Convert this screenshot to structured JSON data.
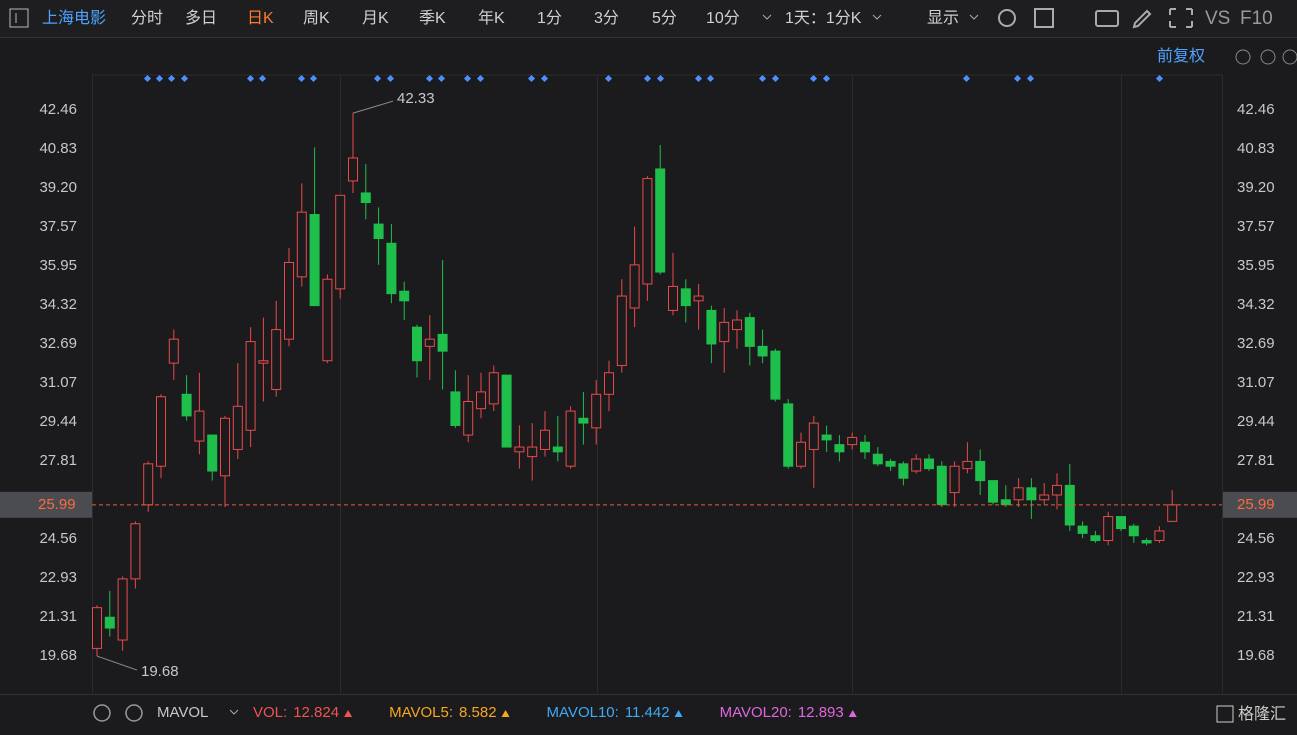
{
  "toolbar": {
    "stock": "上海电影",
    "tabs": [
      "分时",
      "多日",
      "日K",
      "周K",
      "月K",
      "季K",
      "年K",
      "1分",
      "3分",
      "5分",
      "10分"
    ],
    "period": "1天：1分K",
    "display": "显示",
    "vs": "VS",
    "f10": "F10"
  },
  "adjust": "前复权",
  "chart_data": {
    "type": "candlestick",
    "open": [
      20.0,
      21.3,
      20.35,
      22.9,
      25.99,
      27.6,
      31.9,
      30.6,
      28.65,
      28.9,
      27.2,
      28.3,
      29.1,
      31.9,
      30.8,
      32.9,
      35.5,
      38.1,
      32.0,
      35.0,
      39.5,
      39.0,
      37.7,
      36.9,
      34.9,
      33.4,
      32.6,
      33.1,
      30.7,
      28.9,
      30.0,
      30.2,
      31.4,
      28.2,
      28.0,
      28.3,
      28.4,
      27.6,
      29.6,
      29.2,
      30.6,
      31.8,
      34.2,
      35.2,
      40.0,
      34.1,
      35.0,
      34.5,
      34.1,
      32.8,
      33.3,
      33.8,
      32.6,
      32.4,
      30.2,
      27.6,
      28.3,
      28.9,
      28.5,
      28.5,
      28.6,
      28.1,
      27.8,
      27.7,
      27.4,
      27.9,
      27.6,
      26.5,
      27.5,
      27.8,
      27.0,
      26.2,
      26.2,
      26.7,
      26.2,
      26.4,
      26.8,
      25.1,
      24.7,
      24.5,
      25.5,
      25.1,
      24.5,
      24.5,
      25.3
    ],
    "high": [
      21.8,
      22.4,
      23.0,
      25.3,
      27.8,
      30.6,
      33.3,
      31.4,
      31.5,
      28.9,
      29.7,
      31.9,
      33.4,
      33.8,
      34.5,
      36.7,
      39.4,
      40.9,
      35.6,
      38.9,
      42.33,
      40.2,
      38.4,
      37.7,
      35.3,
      33.5,
      33.9,
      36.2,
      31.6,
      31.4,
      31.5,
      31.8,
      31.4,
      29.3,
      29.4,
      29.9,
      29.7,
      30.1,
      30.7,
      31.2,
      32.0,
      35.4,
      37.6,
      39.7,
      41.0,
      36.5,
      35.4,
      35.2,
      34.3,
      34.2,
      34.1,
      34.0,
      33.3,
      32.5,
      30.4,
      29.0,
      29.7,
      29.3,
      28.9,
      29.0,
      28.9,
      28.4,
      27.9,
      27.8,
      28.1,
      28.1,
      27.8,
      27.8,
      28.6,
      28.3,
      27.0,
      26.8,
      27.1,
      27.1,
      26.9,
      27.3,
      27.7,
      25.3,
      24.9,
      25.7,
      25.5,
      25.2,
      24.6,
      25.1,
      26.6
    ],
    "low": [
      19.68,
      20.5,
      19.9,
      22.5,
      25.7,
      27.1,
      31.2,
      29.5,
      28.1,
      27.0,
      25.9,
      27.9,
      28.4,
      30.3,
      30.5,
      32.6,
      35.1,
      34.3,
      31.9,
      34.6,
      39.0,
      37.9,
      36.0,
      34.4,
      33.7,
      31.3,
      31.2,
      30.8,
      29.2,
      28.6,
      29.6,
      29.9,
      28.4,
      27.5,
      27.0,
      28.0,
      27.8,
      27.5,
      28.5,
      28.5,
      29.9,
      31.5,
      33.4,
      34.5,
      35.6,
      33.9,
      33.6,
      33.3,
      31.9,
      31.5,
      32.5,
      31.8,
      31.9,
      30.3,
      27.5,
      27.5,
      26.7,
      28.2,
      27.8,
      28.3,
      27.9,
      27.6,
      27.4,
      26.8,
      27.3,
      27.4,
      25.9,
      25.9,
      27.3,
      26.4,
      26.0,
      25.9,
      25.9,
      25.4,
      26.0,
      25.8,
      24.9,
      24.6,
      24.4,
      24.3,
      24.9,
      24.4,
      24.3,
      24.4,
      25.3
    ],
    "close": [
      21.7,
      20.85,
      22.9,
      25.2,
      27.7,
      30.5,
      32.9,
      29.7,
      29.9,
      27.4,
      29.6,
      30.1,
      32.8,
      32.0,
      33.3,
      36.1,
      38.2,
      34.3,
      35.4,
      38.9,
      40.46,
      38.6,
      37.1,
      34.8,
      34.5,
      32.0,
      32.9,
      32.4,
      29.3,
      30.3,
      30.7,
      31.5,
      28.4,
      28.4,
      28.4,
      29.1,
      28.2,
      29.9,
      29.4,
      30.6,
      31.5,
      34.7,
      36.0,
      39.6,
      35.7,
      35.1,
      34.3,
      34.7,
      32.7,
      33.6,
      33.7,
      32.6,
      32.2,
      30.4,
      27.6,
      28.6,
      29.4,
      28.7,
      28.2,
      28.8,
      28.2,
      27.7,
      27.6,
      27.1,
      27.9,
      27.5,
      26.0,
      27.6,
      27.8,
      27.0,
      26.1,
      26.0,
      26.7,
      26.2,
      26.4,
      26.8,
      25.15,
      24.8,
      24.5,
      25.5,
      25.0,
      24.7,
      24.4,
      24.9,
      25.99
    ],
    "up_color": "#e84a4a",
    "down_color": "#1fbf4c",
    "ylim": [
      18.14,
      43.92
    ],
    "yticks": [
      19.68,
      21.31,
      22.93,
      24.56,
      27.81,
      29.44,
      31.07,
      32.69,
      34.32,
      35.95,
      37.57,
      {
        "value": 39.2,
        "label": "39.20"
      },
      40.83,
      42.46
    ]
  },
  "indicator": {
    "name": "MAVOL",
    "items": [
      {
        "label": "VOL:",
        "value": 12.824,
        "color": "#ef5350"
      },
      {
        "label": "MAVOL5:",
        "value": 8.582,
        "color": "#f5a623"
      },
      {
        "label": "MAVOL10:",
        "value": 11.442,
        "color": "#3fa9f5"
      },
      {
        "label": "MAVOL20:",
        "value": 12.893,
        "color": "#e066e0"
      }
    ]
  },
  "watermark": "格隆汇"
}
